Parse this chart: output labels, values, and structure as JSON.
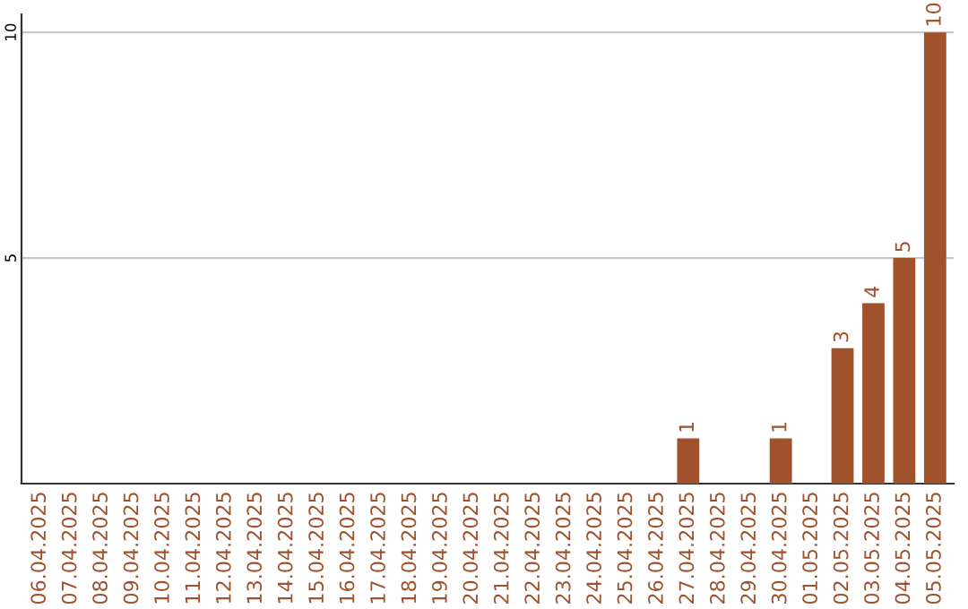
{
  "chart_data": {
    "type": "bar",
    "categories": [
      "06.04.2025",
      "07.04.2025",
      "08.04.2025",
      "09.04.2025",
      "10.04.2025",
      "11.04.2025",
      "12.04.2025",
      "13.04.2025",
      "14.04.2025",
      "15.04.2025",
      "16.04.2025",
      "17.04.2025",
      "18.04.2025",
      "19.04.2025",
      "20.04.2025",
      "21.04.2025",
      "22.04.2025",
      "23.04.2025",
      "24.04.2025",
      "25.04.2025",
      "26.04.2025",
      "27.04.2025",
      "28.04.2025",
      "29.04.2025",
      "30.04.2025",
      "01.05.2025",
      "02.05.2025",
      "03.05.2025",
      "04.05.2025",
      "05.05.2025"
    ],
    "values": [
      0,
      0,
      0,
      0,
      0,
      0,
      0,
      0,
      0,
      0,
      0,
      0,
      0,
      0,
      0,
      0,
      0,
      0,
      0,
      0,
      0,
      1,
      0,
      0,
      1,
      0,
      3,
      4,
      5,
      10
    ],
    "value_labels": [
      null,
      null,
      null,
      null,
      null,
      null,
      null,
      null,
      null,
      null,
      null,
      null,
      null,
      null,
      null,
      null,
      null,
      null,
      null,
      null,
      null,
      "1",
      null,
      null,
      "1",
      null,
      "3",
      "4",
      "5",
      "10"
    ],
    "color": "#a0522d",
    "ylim": [
      0,
      10.4
    ],
    "yticks": [
      5,
      10
    ],
    "grid": "y"
  }
}
